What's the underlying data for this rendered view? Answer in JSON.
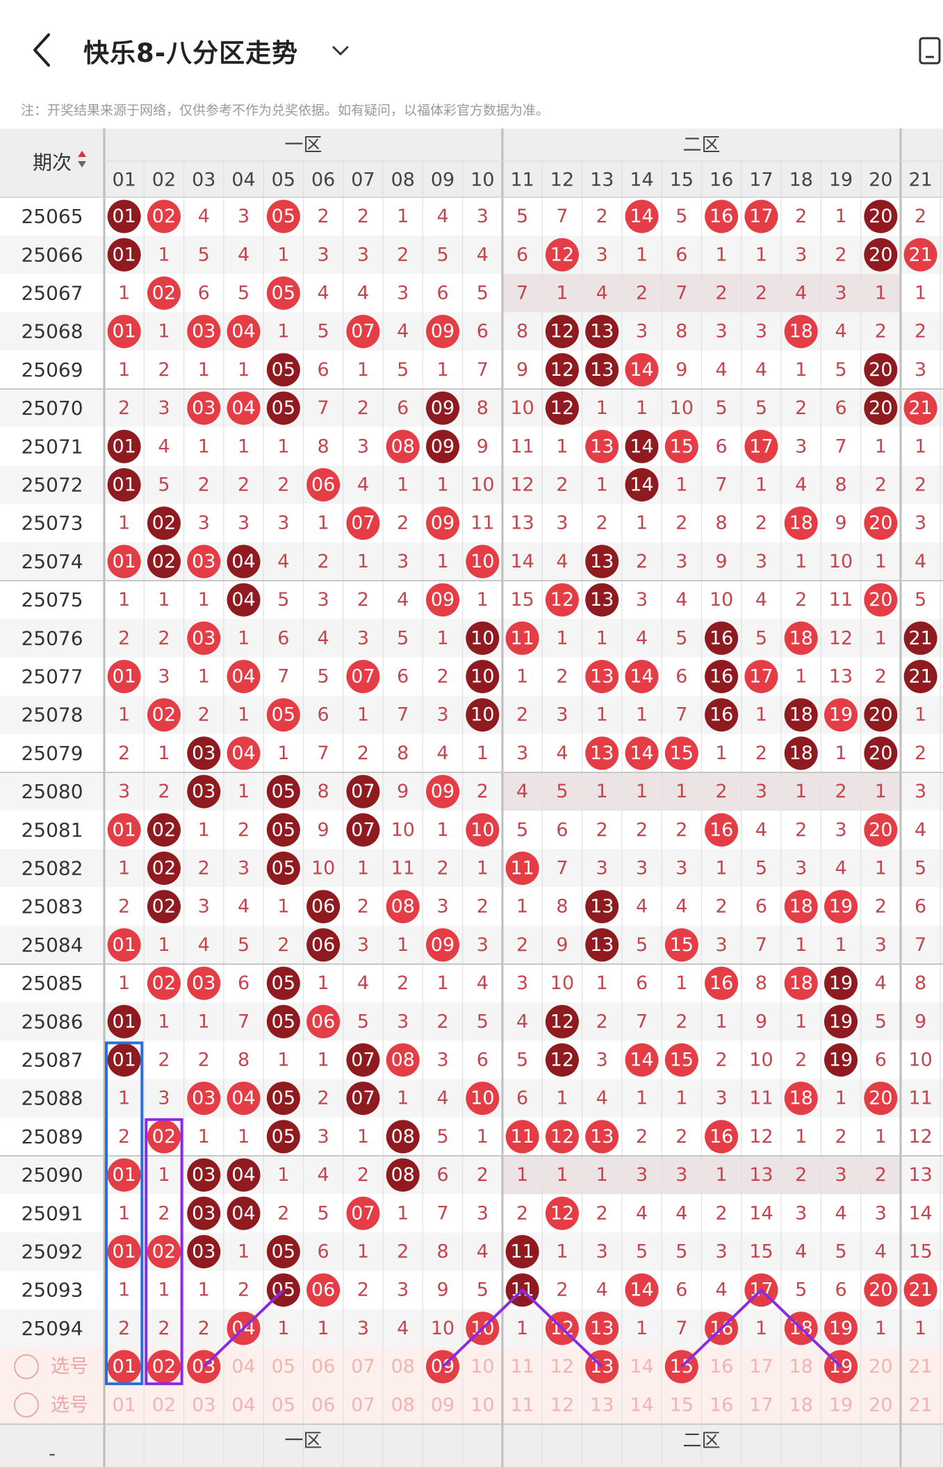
{
  "header": {
    "title": "快乐8-八分区走势",
    "notice": "注：开奖结果来源于网络，仅供参考不作为兑奖依据。如有疑问，以福体彩官方数据为准。"
  },
  "table": {
    "period_header": "期次",
    "zones": [
      "一区",
      "二区"
    ],
    "columns": [
      "01",
      "02",
      "03",
      "04",
      "05",
      "06",
      "07",
      "08",
      "09",
      "10",
      "11",
      "12",
      "13",
      "14",
      "15",
      "16",
      "17",
      "18",
      "19",
      "20",
      "21"
    ],
    "rows": [
      {
        "period": "25065",
        "cells": [
          "01",
          "02",
          4,
          3,
          "05",
          2,
          2,
          1,
          4,
          3,
          5,
          7,
          2,
          "14",
          5,
          "16",
          "17",
          2,
          1,
          "20",
          2
        ]
      },
      {
        "period": "25066",
        "cells": [
          "01",
          1,
          5,
          4,
          1,
          3,
          3,
          2,
          5,
          4,
          6,
          "12",
          3,
          1,
          6,
          1,
          1,
          3,
          2,
          "20",
          "21"
        ]
      },
      {
        "period": "25067",
        "cells": [
          1,
          "02",
          6,
          5,
          "05",
          4,
          4,
          3,
          6,
          5,
          7,
          1,
          4,
          2,
          7,
          2,
          2,
          4,
          3,
          1,
          1
        ]
      },
      {
        "period": "25068",
        "cells": [
          "01",
          1,
          "03",
          "04",
          1,
          5,
          "07",
          4,
          "09",
          6,
          8,
          "12",
          "13",
          3,
          8,
          3,
          3,
          "18",
          4,
          2,
          2
        ]
      },
      {
        "period": "25069",
        "cells": [
          1,
          2,
          1,
          1,
          "05",
          6,
          1,
          5,
          1,
          7,
          9,
          "12",
          "13",
          "14",
          9,
          4,
          4,
          1,
          5,
          "20",
          3
        ]
      },
      {
        "period": "25070",
        "cells": [
          2,
          3,
          "03",
          "04",
          "05",
          7,
          2,
          6,
          "09",
          8,
          10,
          "12",
          1,
          1,
          10,
          5,
          5,
          2,
          6,
          "20",
          "21"
        ]
      },
      {
        "period": "25071",
        "cells": [
          "01",
          4,
          1,
          1,
          1,
          8,
          3,
          "08",
          "09",
          9,
          11,
          1,
          "13",
          "14",
          "15",
          6,
          "17",
          3,
          7,
          1,
          1
        ]
      },
      {
        "period": "25072",
        "cells": [
          "01",
          5,
          2,
          2,
          2,
          "06",
          4,
          1,
          1,
          10,
          12,
          2,
          1,
          "14",
          1,
          7,
          1,
          4,
          8,
          2,
          2
        ]
      },
      {
        "period": "25073",
        "cells": [
          1,
          "02",
          3,
          3,
          3,
          1,
          "07",
          2,
          "09",
          11,
          13,
          3,
          2,
          1,
          2,
          8,
          2,
          "18",
          9,
          "20",
          3
        ]
      },
      {
        "period": "25074",
        "cells": [
          "01",
          "02",
          "03",
          "04",
          4,
          2,
          1,
          3,
          1,
          "10",
          14,
          4,
          "13",
          2,
          3,
          9,
          3,
          1,
          10,
          1,
          4
        ]
      },
      {
        "period": "25075",
        "cells": [
          1,
          1,
          1,
          "04",
          5,
          3,
          2,
          4,
          "09",
          1,
          15,
          "12",
          "13",
          3,
          4,
          10,
          4,
          2,
          11,
          "20",
          5
        ]
      },
      {
        "period": "25076",
        "cells": [
          2,
          2,
          "03",
          1,
          6,
          4,
          3,
          5,
          1,
          "10",
          "11",
          1,
          1,
          4,
          5,
          "16",
          5,
          "18",
          12,
          1,
          "21"
        ]
      },
      {
        "period": "25077",
        "cells": [
          "01",
          3,
          1,
          "04",
          7,
          5,
          "07",
          6,
          2,
          "10",
          1,
          2,
          "13",
          "14",
          6,
          "16",
          "17",
          1,
          13,
          2,
          "21"
        ]
      },
      {
        "period": "25078",
        "cells": [
          1,
          "02",
          2,
          1,
          "05",
          6,
          1,
          7,
          3,
          "10",
          2,
          3,
          1,
          1,
          7,
          "16",
          1,
          "18",
          "19",
          "20",
          1
        ]
      },
      {
        "period": "25079",
        "cells": [
          2,
          1,
          "03",
          "04",
          1,
          7,
          2,
          8,
          4,
          1,
          3,
          4,
          "13",
          "14",
          "15",
          1,
          2,
          "18",
          1,
          "20",
          2
        ]
      },
      {
        "period": "25080",
        "cells": [
          3,
          2,
          "03",
          1,
          "05",
          8,
          "07",
          9,
          "09",
          2,
          4,
          5,
          1,
          1,
          1,
          2,
          3,
          1,
          2,
          1,
          3
        ]
      },
      {
        "period": "25081",
        "cells": [
          "01",
          "02",
          1,
          2,
          "05",
          9,
          "07",
          10,
          1,
          "10",
          5,
          6,
          2,
          2,
          2,
          "16",
          4,
          2,
          3,
          "20",
          4
        ]
      },
      {
        "period": "25082",
        "cells": [
          1,
          "02",
          2,
          3,
          "05",
          10,
          1,
          11,
          2,
          1,
          "11",
          7,
          3,
          3,
          3,
          1,
          5,
          3,
          4,
          1,
          5
        ]
      },
      {
        "period": "25083",
        "cells": [
          2,
          "02",
          3,
          4,
          1,
          "06",
          2,
          "08",
          3,
          2,
          1,
          8,
          "13",
          4,
          4,
          2,
          6,
          "18",
          "19",
          2,
          6
        ]
      },
      {
        "period": "25084",
        "cells": [
          "01",
          1,
          4,
          5,
          2,
          "06",
          3,
          1,
          "09",
          3,
          2,
          9,
          "13",
          5,
          "15",
          3,
          7,
          1,
          1,
          3,
          7
        ]
      },
      {
        "period": "25085",
        "cells": [
          1,
          "02",
          "03",
          6,
          "05",
          1,
          4,
          2,
          1,
          4,
          3,
          10,
          1,
          6,
          1,
          "16",
          8,
          "18",
          "19",
          4,
          8
        ]
      },
      {
        "period": "25086",
        "cells": [
          "01",
          1,
          1,
          7,
          "05",
          "06",
          5,
          3,
          2,
          5,
          4,
          "12",
          2,
          7,
          2,
          1,
          9,
          1,
          "19",
          5,
          9
        ]
      },
      {
        "period": "25087",
        "cells": [
          "01",
          2,
          2,
          8,
          1,
          1,
          "07",
          "08",
          3,
          6,
          5,
          "12",
          3,
          "14",
          "15",
          2,
          10,
          2,
          "19",
          6,
          10
        ]
      },
      {
        "period": "25088",
        "cells": [
          1,
          3,
          "03",
          "04",
          "05",
          2,
          "07",
          1,
          4,
          "10",
          6,
          1,
          4,
          1,
          1,
          3,
          11,
          "18",
          1,
          "20",
          11
        ]
      },
      {
        "period": "25089",
        "cells": [
          2,
          "02",
          1,
          1,
          "05",
          3,
          1,
          "08",
          5,
          1,
          "11",
          "12",
          "13",
          2,
          2,
          "16",
          12,
          1,
          2,
          1,
          12
        ]
      },
      {
        "period": "25090",
        "cells": [
          "01",
          1,
          "03",
          "04",
          1,
          4,
          2,
          "08",
          6,
          2,
          1,
          1,
          1,
          3,
          3,
          1,
          13,
          2,
          3,
          2,
          13
        ]
      },
      {
        "period": "25091",
        "cells": [
          1,
          2,
          "03",
          "04",
          2,
          5,
          "07",
          1,
          7,
          3,
          2,
          "12",
          2,
          4,
          4,
          2,
          14,
          3,
          4,
          3,
          14
        ]
      },
      {
        "period": "25092",
        "cells": [
          "01",
          "02",
          "03",
          1,
          "05",
          6,
          1,
          2,
          8,
          4,
          "11",
          1,
          3,
          5,
          5,
          3,
          15,
          4,
          5,
          4,
          15
        ]
      },
      {
        "period": "25093",
        "cells": [
          1,
          1,
          1,
          2,
          "05",
          "06",
          2,
          3,
          9,
          5,
          "11",
          2,
          4,
          "14",
          6,
          4,
          "17",
          5,
          6,
          "20",
          "21"
        ]
      },
      {
        "period": "25094",
        "cells": [
          2,
          2,
          2,
          "04",
          1,
          1,
          3,
          4,
          10,
          "10",
          1,
          "12",
          "13",
          1,
          7,
          "16",
          1,
          "18",
          "19",
          1,
          1
        ]
      }
    ],
    "select_label": "选号",
    "selected_numbers": [
      "01",
      "02",
      "03",
      "09",
      "13",
      "15",
      "19"
    ]
  }
}
